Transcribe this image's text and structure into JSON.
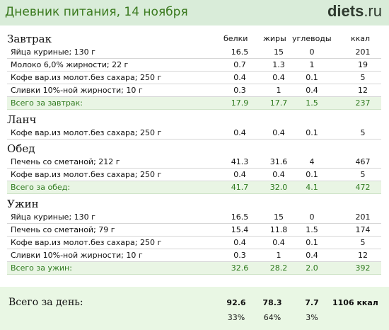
{
  "header": {
    "title": "Дневник питания, 14 ноября",
    "logo_main": "diets",
    "logo_tld": ".ru"
  },
  "columns": {
    "protein": "белки",
    "fat": "жиры",
    "carbs": "углеводы",
    "kcal": "ккал"
  },
  "meals": {
    "breakfast": {
      "title": "Завтрак",
      "items": [
        {
          "name": "Яйца куриные; 130 г",
          "protein": "16.5",
          "fat": "15",
          "carbs": "0",
          "kcal": "201"
        },
        {
          "name": "Молоко 6,0% жирности; 22 г",
          "protein": "0.7",
          "fat": "1.3",
          "carbs": "1",
          "kcal": "19"
        },
        {
          "name": "Кофе вар.из молот.без сахара; 250 г",
          "protein": "0.4",
          "fat": "0.4",
          "carbs": "0.1",
          "kcal": "5"
        },
        {
          "name": "Сливки 10%-ной жирности; 10 г",
          "protein": "0.3",
          "fat": "1",
          "carbs": "0.4",
          "kcal": "12"
        }
      ],
      "total": {
        "name": "Всего за завтрак:",
        "protein": "17.9",
        "fat": "17.7",
        "carbs": "1.5",
        "kcal": "237"
      }
    },
    "lunch": {
      "title": "Ланч",
      "items": [
        {
          "name": "Кофе вар.из молот.без сахара; 250 г",
          "protein": "0.4",
          "fat": "0.4",
          "carbs": "0.1",
          "kcal": "5"
        }
      ]
    },
    "dinner": {
      "title": "Обед",
      "items": [
        {
          "name": "Печень со сметаной; 212 г",
          "protein": "41.3",
          "fat": "31.6",
          "carbs": "4",
          "kcal": "467"
        },
        {
          "name": "Кофе вар.из молот.без сахара; 250 г",
          "protein": "0.4",
          "fat": "0.4",
          "carbs": "0.1",
          "kcal": "5"
        }
      ],
      "total": {
        "name": "Всего за обед:",
        "protein": "41.7",
        "fat": "32.0",
        "carbs": "4.1",
        "kcal": "472"
      }
    },
    "supper": {
      "title": "Ужин",
      "items": [
        {
          "name": "Яйца куриные; 130 г",
          "protein": "16.5",
          "fat": "15",
          "carbs": "0",
          "kcal": "201"
        },
        {
          "name": "Печень со сметаной; 79 г",
          "protein": "15.4",
          "fat": "11.8",
          "carbs": "1.5",
          "kcal": "174"
        },
        {
          "name": "Кофе вар.из молот.без сахара; 250 г",
          "protein": "0.4",
          "fat": "0.4",
          "carbs": "0.1",
          "kcal": "5"
        },
        {
          "name": "Сливки 10%-ной жирности; 10 г",
          "protein": "0.3",
          "fat": "1",
          "carbs": "0.4",
          "kcal": "12"
        }
      ],
      "total": {
        "name": "Всего за ужин:",
        "protein": "32.6",
        "fat": "28.2",
        "carbs": "2.0",
        "kcal": "392"
      }
    }
  },
  "day_total": {
    "label": "Всего за день:",
    "protein": "92.6",
    "fat": "78.3",
    "carbs": "7.7",
    "kcal": "1106 ккал",
    "protein_pct": "33%",
    "fat_pct": "64%",
    "carbs_pct": "3%"
  },
  "colors": {
    "header_bg": "#d9ecd9",
    "title": "#3b7a1f",
    "total_row_bg": "#e9f5e4",
    "total_text": "#2f7a1f"
  }
}
